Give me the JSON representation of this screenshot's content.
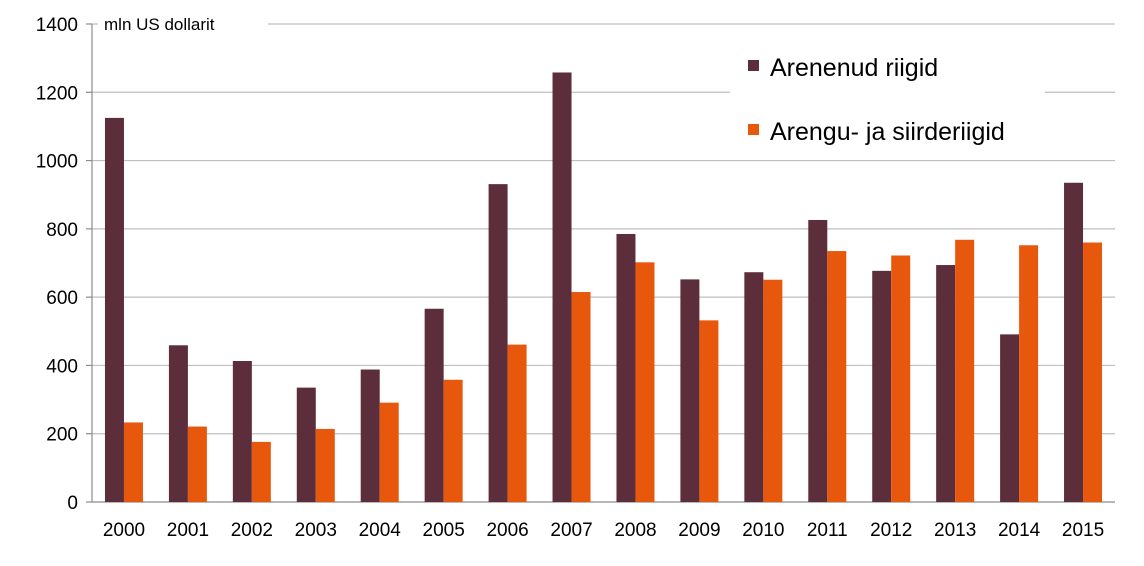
{
  "chart_data": {
    "type": "bar",
    "unit_label": "mln US dollarit",
    "categories": [
      "2000",
      "2001",
      "2002",
      "2003",
      "2004",
      "2005",
      "2006",
      "2007",
      "2008",
      "2009",
      "2010",
      "2011",
      "2012",
      "2013",
      "2014",
      "2015"
    ],
    "series": [
      {
        "name": "Arenenud riigid",
        "color": "#5c2e3c",
        "values": [
          1125,
          459,
          413,
          335,
          388,
          566,
          931,
          1258,
          785,
          652,
          673,
          826,
          677,
          694,
          491,
          935
        ]
      },
      {
        "name": "Arengu- ja siirderiigid",
        "color": "#e8580c",
        "values": [
          233,
          221,
          176,
          214,
          291,
          358,
          461,
          615,
          702,
          532,
          651,
          735,
          722,
          768,
          752,
          760
        ]
      }
    ],
    "ylim": [
      0,
      1400
    ],
    "yticks": [
      0,
      200,
      400,
      600,
      800,
      1000,
      1200,
      1400
    ],
    "grid": true,
    "legend_position": "top-right"
  }
}
